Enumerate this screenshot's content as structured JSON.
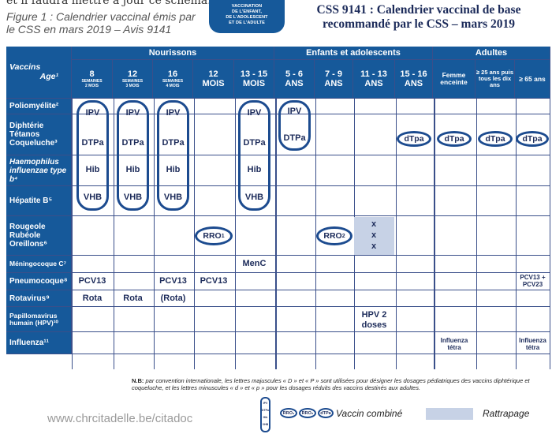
{
  "top_cut_text": "et il faudra mettre à jour ce schéma.",
  "caption": "Figure 1 : Calendrier vaccinal émis par le CSS en mars 2019 – Avis 9141",
  "badge_lines": [
    "VACCINATION",
    "DE L'ENFANT,",
    "DE L'ADOLESCENT",
    "ET DE L'ADULTE"
  ],
  "title_line1": "CSS 9141 : Calendrier vaccinal de base",
  "title_line2": "recommandé par le CSS – mars 2019",
  "groups": {
    "infants": "Nourissons",
    "children": "Enfants et adolescents",
    "adults": "Adultes"
  },
  "corner": {
    "vaccins": "Vaccins",
    "age": "Age¹"
  },
  "ages": [
    {
      "big": "8",
      "line": "SEMAINES",
      "small": "2 MOIS"
    },
    {
      "big": "12",
      "line": "SEMAINES",
      "small": "3 MOIS"
    },
    {
      "big": "16",
      "line": "SEMAINES",
      "small": "4 MOIS"
    },
    {
      "big": "12",
      "line": "MOIS",
      "small": ""
    },
    {
      "big": "13 - 15",
      "line": "MOIS",
      "small": ""
    },
    {
      "big": "5 - 6",
      "line": "ANS",
      "small": ""
    },
    {
      "big": "7 - 9",
      "line": "ANS",
      "small": ""
    },
    {
      "big": "11 - 13",
      "line": "ANS",
      "small": ""
    },
    {
      "big": "15 - 16",
      "line": "ANS",
      "small": ""
    }
  ],
  "adult_ages": [
    "Femme enceinte",
    "≥ 25 ans puis tous les dix ans",
    "≥ 65 ans"
  ],
  "rows": [
    "Poliomyélite²",
    "Diphtérie Tétanos Coqueluche³",
    "Haemophilus influenzae type b⁴",
    "Hépatite B⁵",
    "Rougeole Rubéole Oreillons⁶",
    "Méningocoque C⁷",
    "Pneumocoque⁸",
    "Rotavirus⁹",
    "Papillomavirus humain (HPV)¹⁰",
    "Influenza¹¹"
  ],
  "combo": {
    "ipv": "IPV",
    "dtpa": "DTPa",
    "hib": "Hib",
    "vhb": "VHB"
  },
  "dtpa_small": "dTpa",
  "rro1": "RRO",
  "rro1_sub": "1",
  "rro2": "RRO",
  "rro2_sub": "2",
  "catchup_x": [
    "x",
    "x",
    "x"
  ],
  "menc": "MenC",
  "pcv13": "PCV13",
  "pcv_adult": "PCV13 + PCV23",
  "rota": "Rota",
  "rota_opt": "(Rota)",
  "hpv": "HPV 2 doses",
  "influenza_adult": "Influenza tétra",
  "note_label": "N.B:",
  "note_text": "par convention internationale, les lettres majuscules « D » et « P » sont utilisées pour désigner les dosages pédiatriques des vaccins diphtérique et coqueluche, et les lettres minuscules « d » et « p » pour les dosages réduits des vaccins destinés aux adultes.",
  "legend_combined": "Vaccin combiné",
  "legend_catchup": "Rattrapage",
  "legend_mini": [
    "IPV",
    "DTPa",
    "Hib",
    "VHB"
  ],
  "legend_ovals": [
    "RRO₁",
    "RRO₂",
    "dTPa"
  ],
  "site": "www.chrcitadelle.be/citadoc",
  "colors": {
    "header_blue": "#16599a",
    "pill_blue": "#1c4b8f",
    "catchup": "#c7d2e6"
  }
}
